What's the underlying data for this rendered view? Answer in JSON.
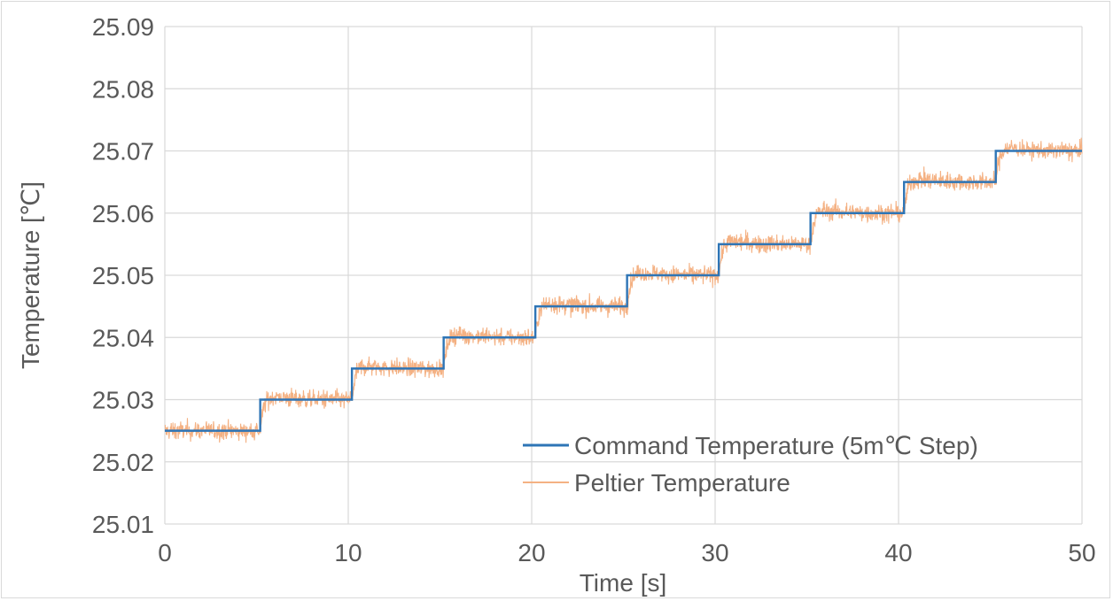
{
  "chart_data": {
    "type": "line",
    "title": "",
    "xlabel": "Time [s]",
    "ylabel": "Temperature [℃]",
    "xlim": [
      0,
      50
    ],
    "ylim": [
      25.01,
      25.09
    ],
    "x_ticks": [
      "0",
      "10",
      "20",
      "30",
      "40",
      "50"
    ],
    "y_ticks": [
      "25.01",
      "25.02",
      "25.03",
      "25.04",
      "25.05",
      "25.06",
      "25.07",
      "25.08",
      "25.09"
    ],
    "grid": true,
    "legend_position": "bottom-right",
    "series": [
      {
        "name": "Command Temperature (5m℃ Step)",
        "color": "#2e75b6",
        "style": "step",
        "x": [
          0,
          5.2,
          5.2,
          10.2,
          10.2,
          15.2,
          15.2,
          20.2,
          20.2,
          25.2,
          25.2,
          30.2,
          30.2,
          35.2,
          35.2,
          40.3,
          40.3,
          45.3,
          45.3,
          50
        ],
        "y": [
          25.025,
          25.025,
          25.03,
          25.03,
          25.035,
          25.035,
          25.04,
          25.04,
          25.045,
          25.045,
          25.05,
          25.05,
          25.055,
          25.055,
          25.06,
          25.06,
          25.065,
          25.065,
          25.07,
          25.07
        ]
      },
      {
        "name": "Peltier Temperature",
        "color": "#f4b183",
        "style": "noisy",
        "step_times": [
          5.2,
          10.2,
          15.2,
          20.2,
          25.2,
          30.2,
          35.2,
          40.3,
          45.3
        ],
        "step_levels": [
          25.025,
          25.03,
          25.035,
          25.04,
          25.045,
          25.05,
          25.055,
          25.06,
          25.065,
          25.07
        ],
        "overshoot": 0.0015,
        "noise_amplitude": 0.0022
      }
    ]
  },
  "legend": {
    "command_label": "Command Temperature (5m℃ Step)",
    "peltier_label": "Peltier Temperature"
  }
}
